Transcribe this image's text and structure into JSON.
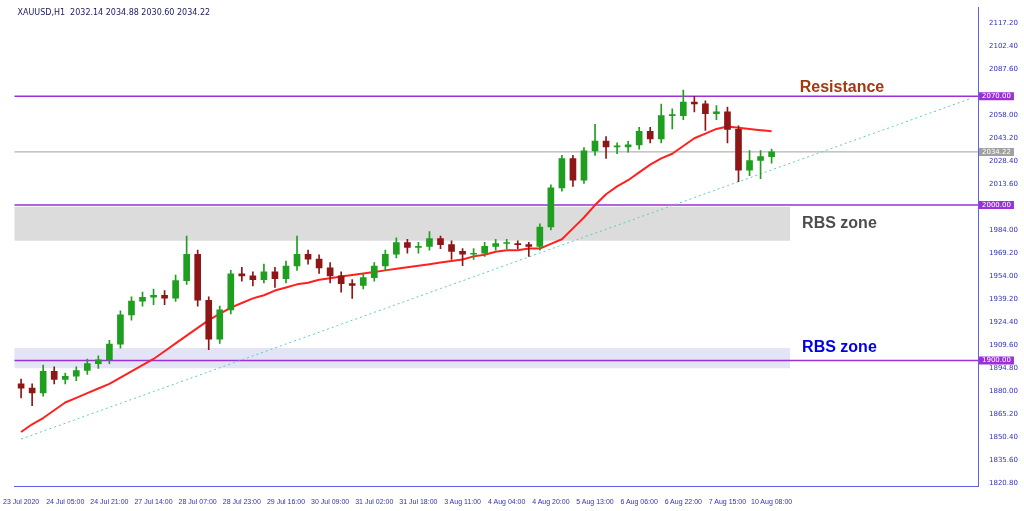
{
  "chart_data": {
    "type": "candlestick",
    "title": "XAUUSD,H1  2032.14 2034.88 2030.60 2034.22",
    "categories": [
      "23 Jul 2020",
      null,
      null,
      null,
      "24 Jul 05:00",
      null,
      null,
      null,
      "24 Jul 21:00",
      null,
      null,
      null,
      "27 Jul 14:00",
      null,
      null,
      null,
      "28 Jul 07:00",
      null,
      null,
      null,
      "28 Jul 23:00",
      null,
      null,
      null,
      "29 Jul 16:00",
      null,
      null,
      null,
      "30 Jul 09:00",
      null,
      null,
      null,
      "31 Jul 02:00",
      null,
      null,
      null,
      "31 Jul 18:00",
      null,
      null,
      null,
      "3 Aug 11:00",
      null,
      null,
      null,
      "4 Aug 04:00",
      null,
      null,
      null,
      "4 Aug 20:00",
      null,
      null,
      null,
      "5 Aug 13:00",
      null,
      null,
      null,
      "6 Aug 06:00",
      null,
      null,
      null,
      "6 Aug 22:00",
      null,
      null,
      null,
      "7 Aug 15:00",
      null,
      null,
      null,
      "10 Aug 08:00",
      null,
      null,
      null,
      null,
      null,
      null,
      null,
      null,
      null,
      null,
      null,
      null,
      null,
      null,
      null,
      null,
      null,
      null
    ],
    "series": [
      {
        "ohlc": [
          [
            1885,
            1888,
            1876,
            1882.3
          ],
          [
            1882.3,
            1885,
            1871,
            1879.2
          ],
          [
            1879.2,
            1897,
            1877,
            1893.0
          ],
          [
            1893.0,
            1896,
            1885,
            1887.9
          ],
          [
            1887.9,
            1892,
            1885,
            1889.9
          ],
          [
            1889.9,
            1896,
            1887,
            1893.6
          ],
          [
            1893.6,
            1901,
            1891,
            1898.0
          ],
          [
            1898.0,
            1903,
            1895,
            1900.5
          ],
          [
            1900.5,
            1913,
            1898,
            1910.6
          ],
          [
            1910.6,
            1932,
            1908,
            1929.4
          ],
          [
            1929.4,
            1941,
            1926,
            1938.2
          ],
          [
            1938.2,
            1944,
            1935,
            1940.7
          ],
          [
            1940.7,
            1946,
            1936,
            1942.0
          ],
          [
            1942.0,
            1945,
            1936,
            1940.1
          ],
          [
            1940.1,
            1955,
            1938,
            1951.4
          ],
          [
            1951.4,
            1980,
            1949,
            1968.4
          ],
          [
            1968.4,
            1971,
            1935,
            1938.8
          ],
          [
            1938.8,
            1941,
            1907,
            1913.7
          ],
          [
            1913.7,
            1935,
            1911,
            1932.6
          ],
          [
            1932.6,
            1958,
            1930,
            1955.8
          ],
          [
            1955.8,
            1960,
            1951,
            1954.5
          ],
          [
            1954.5,
            1957,
            1948,
            1952.0
          ],
          [
            1952.0,
            1962,
            1950,
            1957.1
          ],
          [
            1957.1,
            1960,
            1947,
            1952.7
          ],
          [
            1952.7,
            1964,
            1950,
            1960.8
          ],
          [
            1960.8,
            1980,
            1958,
            1968.4
          ],
          [
            1968.4,
            1971,
            1962,
            1965.2
          ],
          [
            1965.2,
            1968,
            1956,
            1959.6
          ],
          [
            1959.6,
            1963,
            1950,
            1954.5
          ],
          [
            1954.5,
            1957,
            1944,
            1949.5
          ],
          [
            1949.5,
            1952,
            1940,
            1948.3
          ],
          [
            1948.3,
            1956,
            1946,
            1953.3
          ],
          [
            1953.3,
            1963,
            1951,
            1960.8
          ],
          [
            1960.8,
            1971,
            1958,
            1968.4
          ],
          [
            1968.4,
            1979,
            1966,
            1975.9
          ],
          [
            1975.9,
            1978,
            1969,
            1972.8
          ],
          [
            1972.8,
            1976,
            1969,
            1973.4
          ],
          [
            1973.4,
            1983,
            1971,
            1978.4
          ],
          [
            1978.4,
            1980,
            1972,
            1974.6
          ],
          [
            1974.6,
            1977,
            1965,
            1970.2
          ],
          [
            1970.2,
            1972,
            1961,
            1968.4
          ],
          [
            1968.4,
            1972,
            1965,
            1969.0
          ],
          [
            1969.0,
            1976,
            1967,
            1973.4
          ],
          [
            1973.4,
            1978,
            1971,
            1975.3
          ],
          [
            1975.3,
            1978,
            1972,
            1975.3
          ],
          [
            1975.3,
            1977,
            1972,
            1974.6
          ],
          [
            1974.6,
            1976,
            1967,
            1973.4
          ],
          [
            1973.4,
            1988,
            1971,
            1985.9
          ],
          [
            1985.9,
            2013,
            1984,
            2011.1
          ],
          [
            2011.1,
            2032,
            2009,
            2029.9
          ],
          [
            2029.9,
            2032,
            2012,
            2016.1
          ],
          [
            2016.1,
            2037,
            2014,
            2034.9
          ],
          [
            2034.9,
            2052,
            2032,
            2041.2
          ],
          [
            2041.2,
            2044,
            2030,
            2037.4
          ],
          [
            2037.4,
            2040,
            2033,
            2037.4
          ],
          [
            2037.4,
            2041,
            2034,
            2038.7
          ],
          [
            2038.7,
            2050,
            2036,
            2047.5
          ],
          [
            2047.5,
            2050,
            2040,
            2042.5
          ],
          [
            2042.5,
            2065,
            2040,
            2057.5
          ],
          [
            2057.5,
            2062,
            2049,
            2057.5
          ],
          [
            2057.5,
            2074,
            2055,
            2066.3
          ],
          [
            2066.3,
            2070,
            2060,
            2065.1
          ],
          [
            2065.1,
            2067,
            2048,
            2058.8
          ],
          [
            2058.8,
            2064,
            2055,
            2060.0
          ],
          [
            2060.0,
            2063,
            2040,
            2048.7
          ],
          [
            2048.7,
            2051,
            2015,
            2022.4
          ],
          [
            2022.4,
            2035,
            2019,
            2028.7
          ],
          [
            2028.7,
            2035,
            2017,
            2031.2
          ],
          [
            2031.2,
            2036,
            2027,
            2034.22
          ],
          null,
          null,
          null,
          null,
          null,
          null,
          null,
          null,
          null,
          null,
          null,
          null,
          null,
          null,
          null,
          null,
          null,
          null
        ],
        "colors": [
          "#8e1616",
          "#8e1616",
          "#1f9e1f",
          "#8e1616",
          "#1f9e1f",
          "#1f9e1f",
          "#1f9e1f",
          "#1f9e1f",
          "#1f9e1f",
          "#1f9e1f",
          "#1f9e1f",
          "#1f9e1f",
          "#1f9e1f",
          "#8e1616",
          "#1f9e1f",
          "#1f9e1f",
          "#8e1616",
          "#8e1616",
          "#1f9e1f",
          "#1f9e1f",
          "#8e1616",
          "#8e1616",
          "#1f9e1f",
          "#8e1616",
          "#1f9e1f",
          "#1f9e1f",
          "#8e1616",
          "#8e1616",
          "#8e1616",
          "#8e1616",
          "#8e1616",
          "#1f9e1f",
          "#1f9e1f",
          "#1f9e1f",
          "#1f9e1f",
          "#8e1616",
          "#1f9e1f",
          "#1f9e1f",
          "#8e1616",
          "#8e1616",
          "#8e1616",
          "#1f9e1f",
          "#1f9e1f",
          "#1f9e1f",
          "#1f9e1f",
          "#8e1616",
          "#8e1616",
          "#1f9e1f",
          "#1f9e1f",
          "#1f9e1f",
          "#8e1616",
          "#1f9e1f",
          "#1f9e1f",
          "#8e1616",
          "#1f9e1f",
          "#1f9e1f",
          "#1f9e1f",
          "#8e1616",
          "#1f9e1f",
          "#1f9e1f",
          "#1f9e1f",
          "#8e1616",
          "#8e1616",
          "#1f9e1f",
          "#8e1616",
          "#8e1616",
          "#1f9e1f",
          "#1f9e1f",
          "#1f9e1f",
          null,
          null,
          null,
          null,
          null,
          null,
          null,
          null,
          null,
          null,
          null,
          null,
          null,
          null,
          null,
          null,
          null,
          null
        ]
      },
      {
        "type": "line",
        "color": "#ff2020",
        "values": [
          1854,
          1859,
          1863,
          1868,
          1873,
          1876,
          1879,
          1882,
          1885,
          1889,
          1893,
          1897,
          1901,
          1906,
          1911,
          1916,
          1921,
          1926,
          1930,
          1934,
          1937,
          1940,
          1942,
          1945,
          1947,
          1949,
          1950,
          1952,
          1953,
          1954,
          1955,
          1956,
          1957,
          1958,
          1959,
          1960,
          1961,
          1962,
          1963,
          1964,
          1965,
          1967,
          1968,
          1970,
          1971,
          1971,
          1972,
          1972,
          1975,
          1978,
          1985,
          1992,
          2000,
          2007,
          2012,
          2016,
          2021,
          2026,
          2030,
          2033,
          2038,
          2043,
          2046,
          2049,
          2050.6,
          2049.8,
          2049,
          2048.2,
          2047.5,
          null,
          null,
          null,
          null,
          null,
          null,
          null,
          null,
          null,
          null,
          null,
          null,
          null,
          null,
          null,
          null,
          null,
          null
        ]
      },
      {
        "type": "line",
        "color": "#5fc9c0",
        "line_style": "dotted",
        "values": [
          1849.5,
          1852.0,
          1854.6,
          1857.1,
          1859.7,
          1862.2,
          1864.8,
          1867.3,
          1869.9,
          1872.4,
          1875.0,
          1877.5,
          1880.1,
          1882.6,
          1885.1,
          1887.7,
          1890.2,
          1892.8,
          1895.3,
          1897.9,
          1900.4,
          1903.0,
          1905.5,
          1908.1,
          1910.6,
          1913.2,
          1915.7,
          1918.2,
          1920.8,
          1923.3,
          1925.9,
          1928.4,
          1931.0,
          1933.5,
          1936.1,
          1938.6,
          1941.2,
          1943.7,
          1946.3,
          1948.8,
          1951.3,
          1953.9,
          1956.4,
          1959.0,
          1961.5,
          1964.1,
          1966.6,
          1969.2,
          1971.7,
          1974.3,
          1976.8,
          1979.4,
          1981.9,
          1984.4,
          1987.0,
          1989.5,
          1992.1,
          1994.6,
          1997.2,
          1999.7,
          2002.3,
          2004.8,
          2007.4,
          2009.9,
          2012.5,
          2015.0,
          2017.5,
          2020.1,
          2022.6,
          2025.2,
          2027.7,
          2030.3,
          2032.8,
          2035.4,
          2037.9,
          2040.5,
          2043.0,
          2045.6,
          2048.1,
          2050.6,
          2053.2,
          2055.7,
          2058.3,
          2060.8,
          2063.4,
          2065.9,
          2068.5
        ]
      }
    ],
    "ylim": [
      1818.9,
      2127.3
    ],
    "yticks": [
      {
        "value": 1820.8,
        "label": "1820.80"
      },
      {
        "value": 1835.6,
        "label": "1835.60"
      },
      {
        "value": 1850.4,
        "label": "1850.40"
      },
      {
        "value": 1865.2,
        "label": "1865.20"
      },
      {
        "value": 1880,
        "label": "1880.00"
      },
      {
        "value": 1894.8,
        "label": "1894.80"
      },
      {
        "value": 1909.6,
        "label": "1909.60"
      },
      {
        "value": 1924.4,
        "label": "1924.40"
      },
      {
        "value": 1939.2,
        "label": "1939.20"
      },
      {
        "value": 1954,
        "label": "1954.00"
      },
      {
        "value": 1969.2,
        "label": "1969.20"
      },
      {
        "value": 1984,
        "label": "1984.00"
      },
      {
        "value": 2013.6,
        "label": "2013.60"
      },
      {
        "value": 2028.4,
        "label": "2028.40"
      },
      {
        "value": 2043.2,
        "label": "2043.20"
      },
      {
        "value": 2058,
        "label": "2058.00"
      },
      {
        "value": 2087.6,
        "label": "2087.60"
      },
      {
        "value": 2102.4,
        "label": "2102.40"
      },
      {
        "value": 2117.2,
        "label": "2117.20"
      }
    ],
    "ref_lines": [
      {
        "axis": "y",
        "value": 2070,
        "label": "2070.00",
        "color": "#9b30d9"
      },
      {
        "axis": "y",
        "value": 2034.22,
        "label": "2034.22",
        "color": "#a0a0a0"
      },
      {
        "axis": "y",
        "value": 2000,
        "label": "2000.00",
        "color": "#9b30d9"
      },
      {
        "axis": "y",
        "value": 1900,
        "label": "1900.00",
        "color": "#9b30d9"
      }
    ],
    "bands": [
      {
        "axis": "y",
        "from": 1977,
        "to": 1999,
        "label": "RBS zone",
        "color": "#dcdcdc"
      },
      {
        "axis": "y",
        "from": 1895,
        "to": 1908,
        "label": "RBS zone",
        "color": "#e4e4f7"
      }
    ],
    "annotations": [
      {
        "text": "Resistance",
        "y": 2070
      }
    ]
  }
}
